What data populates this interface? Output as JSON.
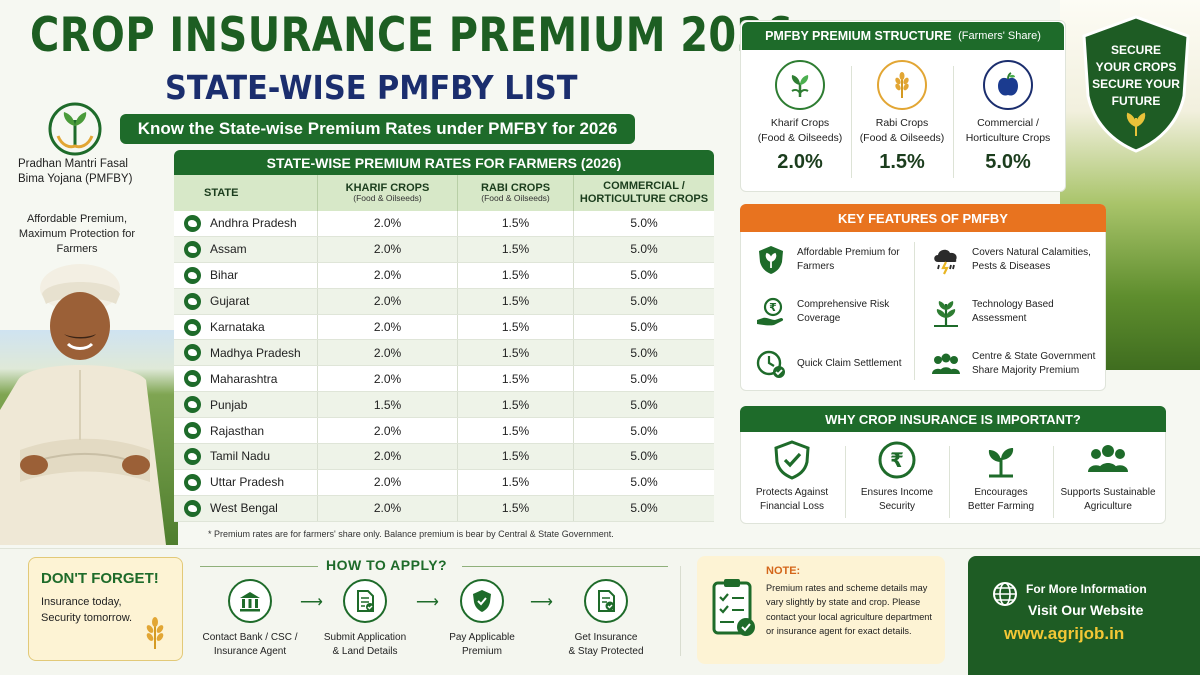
{
  "header": {
    "title": "CROP INSURANCE PREMIUM 2026",
    "subtitle": "STATE-WISE PMFBY LIST",
    "tagline": "Know the State-wise Premium Rates under PMFBY for 2026"
  },
  "scheme": {
    "name": "Pradhan Mantri Fasal Bima Yojana (PMFBY)",
    "description": "Affordable Premium, Maximum Protection for Farmers"
  },
  "table": {
    "title": "STATE-WISE PREMIUM RATES FOR FARMERS (2026)",
    "headers": [
      {
        "label": "STATE",
        "sub": ""
      },
      {
        "label": "KHARIF CROPS",
        "sub": "(Food & Oilseeds)"
      },
      {
        "label": "RABI CROPS",
        "sub": "(Food & Oilseeds)"
      },
      {
        "label": "COMMERCIAL /",
        "sub": "HORTICULTURE CROPS"
      }
    ],
    "rows": [
      {
        "state": "Andhra Pradesh",
        "kharif": "2.0%",
        "rabi": "1.5%",
        "commercial": "5.0%"
      },
      {
        "state": "Assam",
        "kharif": "2.0%",
        "rabi": "1.5%",
        "commercial": "5.0%"
      },
      {
        "state": "Bihar",
        "kharif": "2.0%",
        "rabi": "1.5%",
        "commercial": "5.0%"
      },
      {
        "state": "Gujarat",
        "kharif": "2.0%",
        "rabi": "1.5%",
        "commercial": "5.0%"
      },
      {
        "state": "Karnataka",
        "kharif": "2.0%",
        "rabi": "1.5%",
        "commercial": "5.0%"
      },
      {
        "state": "Madhya Pradesh",
        "kharif": "2.0%",
        "rabi": "1.5%",
        "commercial": "5.0%"
      },
      {
        "state": "Maharashtra",
        "kharif": "2.0%",
        "rabi": "1.5%",
        "commercial": "5.0%"
      },
      {
        "state": "Punjab",
        "kharif": "1.5%",
        "rabi": "1.5%",
        "commercial": "5.0%"
      },
      {
        "state": "Rajasthan",
        "kharif": "2.0%",
        "rabi": "1.5%",
        "commercial": "5.0%"
      },
      {
        "state": "Tamil Nadu",
        "kharif": "2.0%",
        "rabi": "1.5%",
        "commercial": "5.0%"
      },
      {
        "state": "Uttar Pradesh",
        "kharif": "2.0%",
        "rabi": "1.5%",
        "commercial": "5.0%"
      },
      {
        "state": "West Bengal",
        "kharif": "2.0%",
        "rabi": "1.5%",
        "commercial": "5.0%"
      }
    ],
    "footnote": "* Premium rates are for farmers' share only. Balance premium is bear by Central & State Government."
  },
  "premium_structure": {
    "title": "PMFBY PREMIUM STRUCTURE",
    "title_note": "(Farmers' Share)",
    "items": [
      {
        "label": "Kharif Crops",
        "sub": "(Food & Oilseeds)",
        "value": "2.0%",
        "icon": "sprout-icon"
      },
      {
        "label": "Rabi Crops",
        "sub": "(Food & Oilseeds)",
        "value": "1.5%",
        "icon": "wheat-icon"
      },
      {
        "label": "Commercial /",
        "sub": "Horticulture Crops",
        "value": "5.0%",
        "icon": "apple-icon"
      }
    ]
  },
  "shield": {
    "line1": "SECURE",
    "line2": "YOUR CROPS",
    "line3": "SECURE YOUR",
    "line4": "FUTURE"
  },
  "key_features": {
    "title": "KEY FEATURES OF PMFBY",
    "items": [
      {
        "text": "Affordable Premium for Farmers",
        "icon": "shield-leaf-icon"
      },
      {
        "text": "Covers Natural Calamities, Pests & Diseases",
        "icon": "storm-cloud-icon"
      },
      {
        "text": "Comprehensive Risk Coverage",
        "icon": "rupee-hand-icon"
      },
      {
        "text": "Technology Based Assessment",
        "icon": "plant-tech-icon"
      },
      {
        "text": "Quick Claim Settlement",
        "icon": "clock-check-icon"
      },
      {
        "text": "Centre & State Government Share Majority Premium",
        "icon": "people-icon"
      }
    ]
  },
  "why_important": {
    "title": "WHY CROP INSURANCE IS IMPORTANT?",
    "items": [
      {
        "line1": "Protects Against",
        "line2": "Financial Loss",
        "icon": "shield-check-icon"
      },
      {
        "line1": "Ensures Income",
        "line2": "Security",
        "icon": "rupee-circle-icon"
      },
      {
        "line1": "Encourages",
        "line2": "Better Farming",
        "icon": "seedling-icon"
      },
      {
        "line1": "Supports Sustainable",
        "line2": "Agriculture",
        "icon": "community-icon"
      }
    ]
  },
  "reminder": {
    "title": "DON'T FORGET!",
    "line1": "Insurance today,",
    "line2": "Security tomorrow."
  },
  "how_to_apply": {
    "title": "HOW TO APPLY?",
    "steps": [
      {
        "line1": "Contact Bank / CSC /",
        "line2": "Insurance Agent",
        "icon": "bank-icon"
      },
      {
        "line1": "Submit Application",
        "line2": "& Land Details",
        "icon": "document-icon"
      },
      {
        "line1": "Pay Applicable",
        "line2": "Premium",
        "icon": "shield-check-icon"
      },
      {
        "line1": "Get Insurance",
        "line2": "& Stay Protected",
        "icon": "document-check-icon"
      }
    ]
  },
  "note": {
    "title": "NOTE:",
    "text": "Premium rates and scheme details may vary slightly by state and crop. Please contact your local agriculture department or insurance agent for exact details."
  },
  "info": {
    "line1": "For More Information",
    "line2": "Visit Our Website",
    "url": "www.agrijob.in"
  },
  "colors": {
    "primary_green": "#1e6b2a",
    "navy": "#1b2e6e",
    "orange": "#e8731f",
    "gold": "#f3c735"
  }
}
